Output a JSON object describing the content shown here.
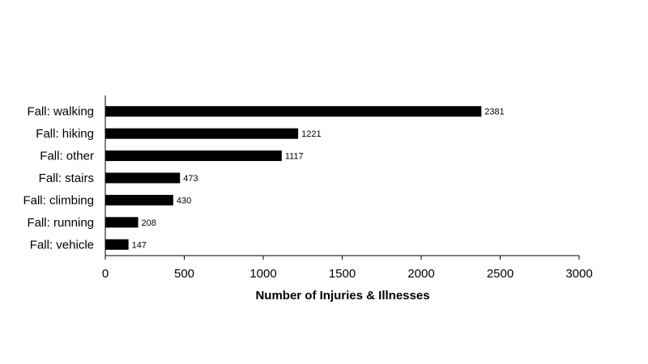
{
  "chart_data": {
    "type": "bar",
    "orientation": "horizontal",
    "categories": [
      "Fall: walking",
      "Fall: hiking",
      "Fall: other",
      "Fall: stairs",
      "Fall: climbing",
      "Fall: running",
      "Fall: vehicle"
    ],
    "values": [
      2381,
      1221,
      1117,
      473,
      430,
      208,
      147
    ],
    "data_labels": [
      "2381",
      "1221",
      "1117",
      "473",
      "430",
      "208",
      "147"
    ],
    "xlabel": "Number of Injuries & Illnesses",
    "ylabel": "",
    "title": "",
    "xlim": [
      0,
      3000
    ],
    "x_ticks": [
      0,
      500,
      1000,
      1500,
      2000,
      2500,
      3000
    ],
    "x_tick_labels": [
      "0",
      "500",
      "1000",
      "1500",
      "2000",
      "2500",
      "3000"
    ],
    "grid": false,
    "legend": "none",
    "bar_color": "#000000"
  }
}
